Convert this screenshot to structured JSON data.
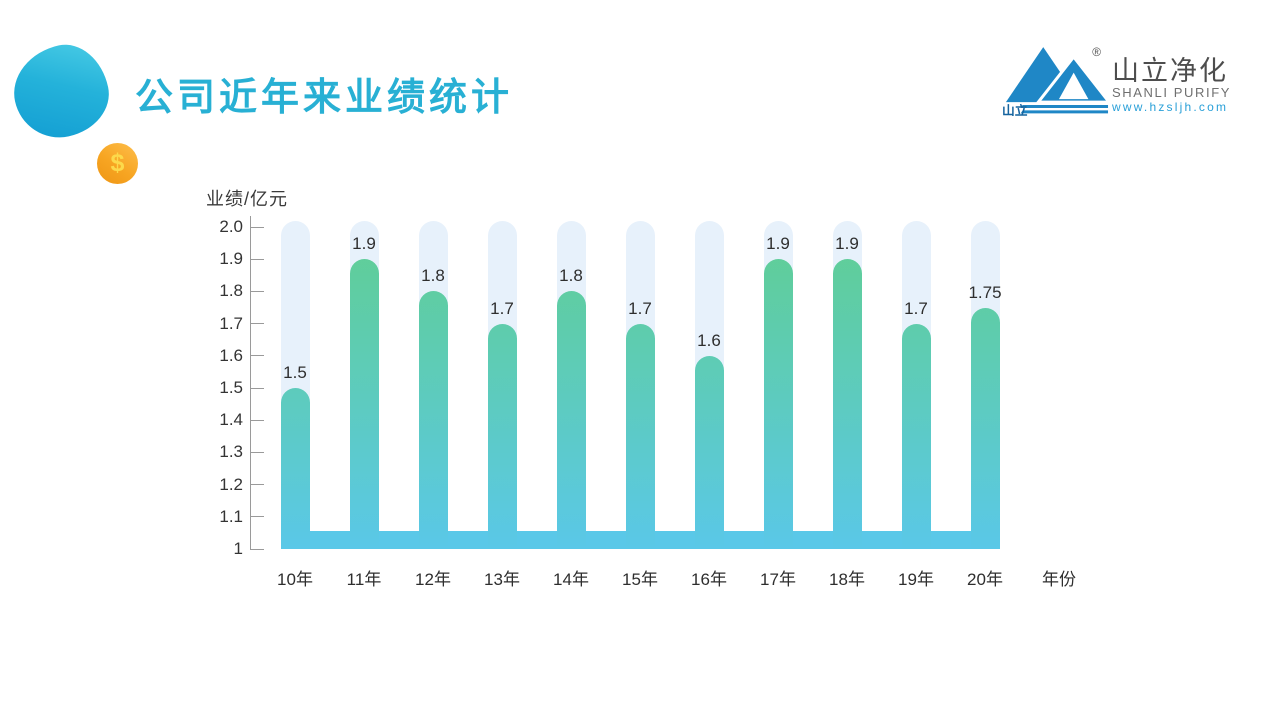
{
  "header": {
    "title": "公司近年来业绩统计",
    "title_color": "#28b0d4"
  },
  "decorations": {
    "blob": "teal-blob",
    "coin_symbol": "$",
    "coin_color": "#f7a522"
  },
  "logo": {
    "registered_mark": "®",
    "cn_name_small": "山立",
    "cn_name": "山立净化",
    "en_name": "SHANLI PURIFY",
    "website": "www.hzsljh.com",
    "mark_color": "#1f87c6",
    "website_color": "#2aa0d8"
  },
  "chart_data": {
    "type": "bar",
    "title": "",
    "ylabel": "业绩/亿元",
    "xlabel": "年份",
    "categories": [
      "10年",
      "11年",
      "12年",
      "13年",
      "14年",
      "15年",
      "16年",
      "17年",
      "18年",
      "19年",
      "20年"
    ],
    "values": [
      1.5,
      1.9,
      1.8,
      1.7,
      1.8,
      1.7,
      1.6,
      1.9,
      1.9,
      1.7,
      1.75
    ],
    "data_labels": [
      "1.5",
      "1.9",
      "1.8",
      "1.7",
      "1.8",
      "1.7",
      "1.6",
      "1.9",
      "1.9",
      "1.7",
      "1.75"
    ],
    "ylim": [
      1,
      2
    ],
    "yticks": [
      "1",
      "1.1",
      "1.2",
      "1.3",
      "1.4",
      "1.5",
      "1.6",
      "1.7",
      "1.8",
      "1.9",
      "2.0"
    ],
    "grid": false,
    "legend": false,
    "colors": {
      "bar_gradient_top": "#60ce93",
      "bar_gradient_bottom": "#5ac8e8",
      "track": "#e7f1fb",
      "axis": "#9a9a9a",
      "label": "#2e2e2e"
    }
  }
}
